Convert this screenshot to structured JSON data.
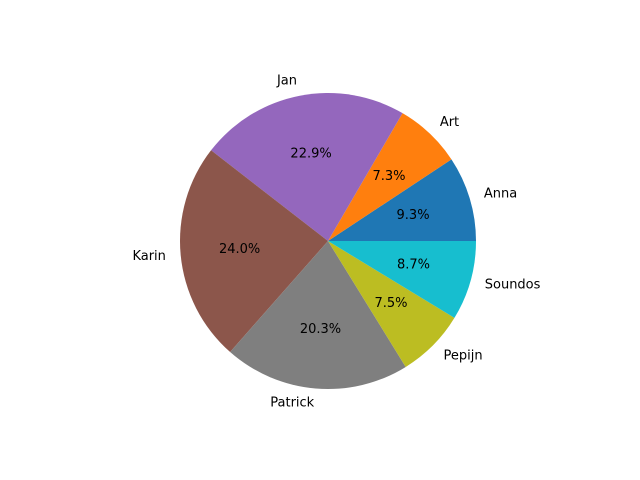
{
  "chart_data": {
    "type": "pie",
    "title": "",
    "start_angle_deg": 0,
    "direction": "counterclockwise",
    "slices": [
      {
        "label": "Anna",
        "value": 9.3,
        "pct_label": "9.3%",
        "color": "#1f77b4"
      },
      {
        "label": "Art",
        "value": 7.3,
        "pct_label": "7.3%",
        "color": "#ff7f0e"
      },
      {
        "label": "Jan",
        "value": 22.9,
        "pct_label": "22.9%",
        "color": "#9467bd"
      },
      {
        "label": "Karin",
        "value": 24.0,
        "pct_label": "24.0%",
        "color": "#8c564b"
      },
      {
        "label": "Patrick",
        "value": 20.3,
        "pct_label": "20.3%",
        "color": "#7f7f7f"
      },
      {
        "label": "Pepijn",
        "value": 7.5,
        "pct_label": "7.5%",
        "color": "#bcbd22"
      },
      {
        "label": "Soundos",
        "value": 8.7,
        "pct_label": "8.7%",
        "color": "#17becf"
      }
    ]
  }
}
